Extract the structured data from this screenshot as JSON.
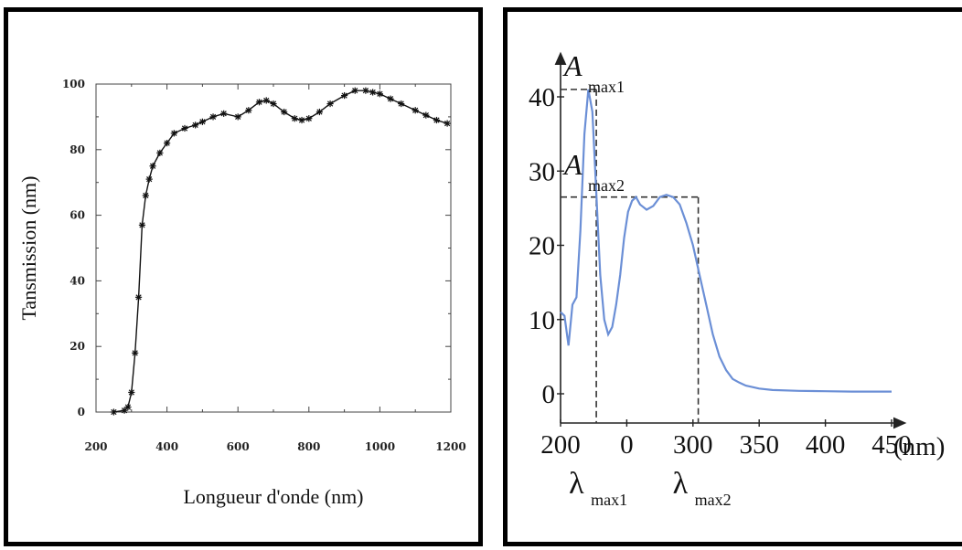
{
  "chart_data": [
    {
      "type": "line",
      "xlabel": "Longueur d'onde (nm)",
      "ylabel": "Tansmission (nm)",
      "xlim": [
        200,
        1200
      ],
      "ylim": [
        0,
        100
      ],
      "x_ticks": [
        "200",
        "400",
        "600",
        "800",
        "1000",
        "1200"
      ],
      "y_ticks": [
        "0",
        "20",
        "40",
        "60",
        "80",
        "100"
      ],
      "grid": false,
      "marker": "asterisk",
      "x": [
        250,
        280,
        290,
        300,
        310,
        320,
        330,
        340,
        350,
        360,
        380,
        400,
        420,
        450,
        480,
        500,
        530,
        560,
        600,
        630,
        660,
        680,
        700,
        730,
        760,
        780,
        800,
        830,
        860,
        900,
        930,
        960,
        980,
        1000,
        1030,
        1060,
        1100,
        1130,
        1160,
        1190
      ],
      "y": [
        0,
        0.5,
        1.5,
        6,
        18,
        35,
        57,
        66,
        71,
        75,
        79,
        82,
        85,
        86.5,
        87.5,
        88.5,
        90,
        91,
        90,
        92,
        94.5,
        95,
        94,
        91.5,
        89.5,
        89,
        89.5,
        91.5,
        94,
        96.5,
        98,
        98,
        97.5,
        97,
        95.5,
        94,
        92,
        90.5,
        89,
        88
      ]
    },
    {
      "type": "line",
      "xlabel": "(nm)",
      "ylabel": "",
      "x_ticks": [
        "200",
        "0",
        "300",
        "350",
        "400",
        "450"
      ],
      "y_ticks": [
        "0",
        "10",
        "20",
        "30",
        "40"
      ],
      "xlim": [
        200,
        450
      ],
      "ylim": [
        0,
        42
      ],
      "color": "#6b8fd6",
      "x": [
        200,
        203,
        206,
        209,
        212,
        215,
        218,
        221,
        224,
        227,
        230,
        233,
        236,
        239,
        242,
        245,
        248,
        251,
        254,
        257,
        260,
        265,
        270,
        275,
        280,
        285,
        290,
        295,
        300,
        305,
        310,
        315,
        320,
        325,
        330,
        335,
        340,
        345,
        350,
        360,
        380,
        400,
        420,
        450
      ],
      "y": [
        11,
        10.5,
        6.5,
        12,
        13,
        22,
        35,
        41,
        38,
        27,
        16,
        10,
        8,
        9,
        12,
        16,
        21,
        24.5,
        26,
        26.5,
        25.5,
        24.8,
        25.3,
        26.5,
        26.8,
        26.5,
        25.5,
        23,
        20,
        16,
        12,
        8,
        5,
        3.2,
        2,
        1.5,
        1.1,
        0.9,
        0.7,
        0.5,
        0.4,
        0.35,
        0.3,
        0.3
      ],
      "annotations": {
        "peak1": {
          "symbol": "A",
          "subscript": "max1",
          "value": 41,
          "lambda_symbol": "λ",
          "lambda_subscript": "max1",
          "x": 227
        },
        "peak2": {
          "symbol": "A",
          "subscript": "max2",
          "value": 26.5,
          "lambda_symbol": "λ",
          "lambda_subscript": "max2",
          "x": 304
        }
      }
    }
  ]
}
